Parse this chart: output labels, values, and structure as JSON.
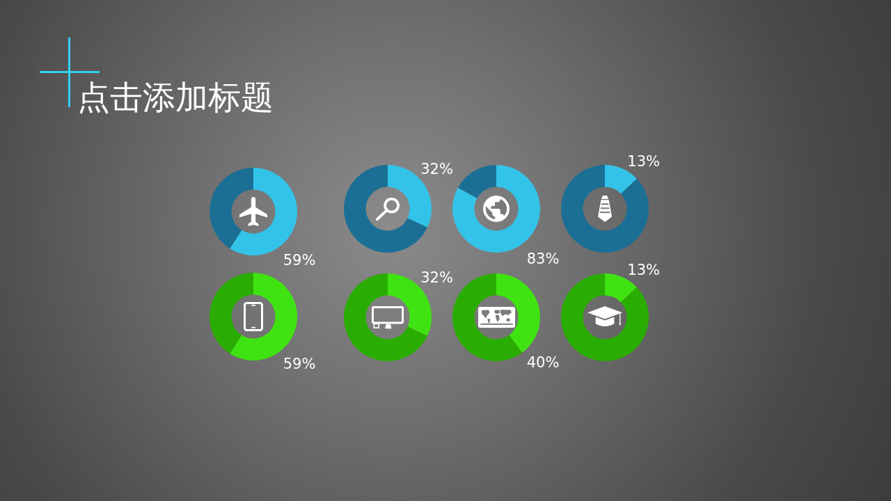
{
  "chart_data": [
    {
      "type": "other",
      "title": "点击添加标题"
    },
    {
      "type": "donut",
      "categories": [
        null,
        null
      ],
      "values": [
        59,
        41
      ],
      "colors": [
        "#33c3e8",
        "#1b6f95"
      ],
      "value_labels": [
        "59%",
        null
      ]
    },
    {
      "type": "donut",
      "categories": [
        null,
        null
      ],
      "values": [
        32,
        68
      ],
      "colors": [
        "#33c3e8",
        "#1b6f95"
      ],
      "value_labels": [
        "32%",
        null
      ]
    },
    {
      "type": "donut",
      "categories": [
        null,
        null
      ],
      "values": [
        83,
        17
      ],
      "colors": [
        "#33c3e8",
        "#1b6f95"
      ],
      "value_labels": [
        "83%",
        null
      ]
    },
    {
      "type": "donut",
      "categories": [
        null,
        null
      ],
      "values": [
        13,
        87
      ],
      "colors": [
        "#33c3e8",
        "#1b6f95"
      ],
      "value_labels": [
        "13%",
        null
      ]
    },
    {
      "type": "donut",
      "categories": [
        null,
        null
      ],
      "values": [
        59,
        41
      ],
      "colors": [
        "#40e312",
        "#2aad02"
      ],
      "value_labels": [
        "59%",
        null
      ]
    },
    {
      "type": "donut",
      "categories": [
        null,
        null
      ],
      "values": [
        32,
        68
      ],
      "colors": [
        "#40e312",
        "#2aad02"
      ],
      "value_labels": [
        "32%",
        null
      ]
    },
    {
      "type": "donut",
      "categories": [
        null,
        null
      ],
      "values": [
        40,
        60
      ],
      "colors": [
        "#40e312",
        "#2aad02"
      ],
      "value_labels": [
        "40%",
        null
      ]
    },
    {
      "type": "donut",
      "categories": [
        null,
        null
      ],
      "values": [
        13,
        87
      ],
      "colors": [
        "#40e312",
        "#2aad02"
      ],
      "value_labels": [
        "13%",
        null
      ]
    }
  ]
}
